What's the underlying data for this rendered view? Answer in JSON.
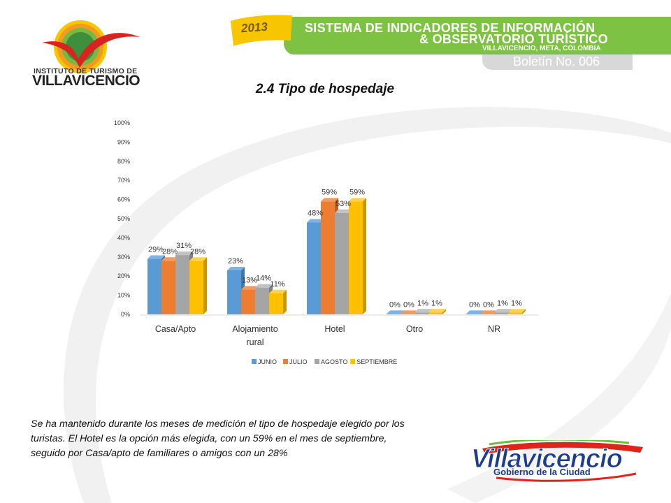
{
  "header": {
    "year": "2013",
    "line1": "SISTEMA DE INDICADORES DE INFORMACIÓN",
    "line2": "& OBSERVATORIO TURÍSTICO",
    "line3": "VILLAVICENCIO, META, COLOMBIA",
    "boletin": "Boletín No. 006"
  },
  "logo": {
    "line1": "INSTITUTO DE TURISMO DE",
    "line2": "VILLAVICENCIO"
  },
  "footer": {
    "brand": "Villavicencio",
    "sub": "Gobierno de la Ciudad"
  },
  "colors": {
    "green": "#7dc242",
    "junio": "#5b9bd5",
    "julio": "#ed7d31",
    "agosto": "#a5a5a5",
    "septiembre": "#ffc000"
  },
  "paragraph": "Se ha mantenido durante los meses de medición el tipo de hospedaje elegido por los turistas. El Hotel es la opción más elegida, con un 59% en el mes de septiembre, seguido por Casa/apto de familiares o amigos con un 28%",
  "chart_data": {
    "type": "bar",
    "title": "2.4 Tipo de hospedaje",
    "categories": [
      [
        "Casa/Apto"
      ],
      [
        "Alojamiento",
        "rural"
      ],
      [
        "Hotel"
      ],
      [
        "Otro"
      ],
      [
        "NR"
      ]
    ],
    "series": [
      {
        "name": "JUNIO",
        "values": [
          29,
          23,
          48,
          0,
          0
        ],
        "color": "#5b9bd5",
        "side": "#3f78ad",
        "top": "#7fb3e3"
      },
      {
        "name": "JULIO",
        "values": [
          28,
          13,
          59,
          0,
          0
        ],
        "color": "#ed7d31",
        "side": "#c0601c",
        "top": "#f39b5f"
      },
      {
        "name": "AGOSTO",
        "values": [
          31,
          14,
          53,
          1,
          1
        ],
        "color": "#a5a5a5",
        "side": "#818181",
        "top": "#c2c2c2"
      },
      {
        "name": "SEPTIEMBRE",
        "values": [
          28,
          11,
          59,
          1,
          1
        ],
        "color": "#ffc000",
        "side": "#c99700",
        "top": "#ffd24d"
      }
    ],
    "ylim": [
      0,
      100
    ],
    "yticks": [
      "0%",
      "10%",
      "20%",
      "30%",
      "40%",
      "50%",
      "60%",
      "70%",
      "80%",
      "90%",
      "100%"
    ],
    "grid": false,
    "legend": "bottom"
  }
}
